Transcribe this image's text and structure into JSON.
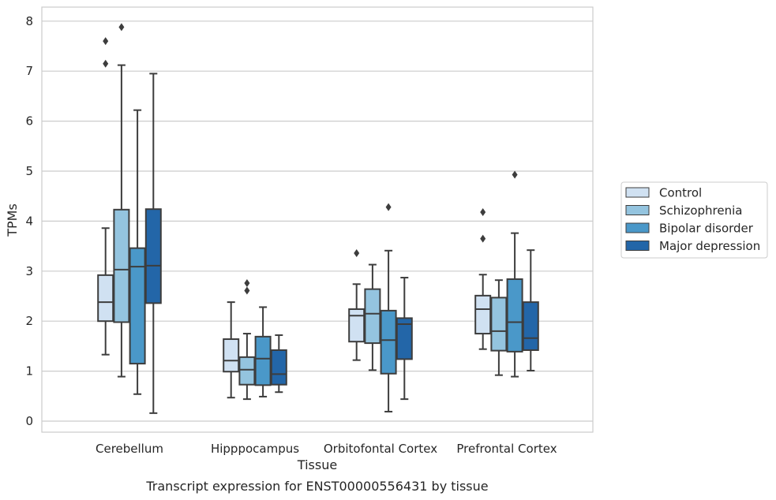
{
  "chart_data": {
    "type": "boxplot",
    "title": "",
    "caption": "Transcript expression for ENST00000556431 by tissue",
    "xlabel": "Tissue",
    "ylabel": "TPMs",
    "ylim": [
      -0.2,
      8.3
    ],
    "yticks": [
      0,
      1,
      2,
      3,
      4,
      5,
      6,
      7,
      8
    ],
    "grid": "horizontal",
    "legend_position": "right",
    "categories": [
      "Cerebellum",
      "Hipppocampus",
      "Orbitofontal Cortex",
      "Prefrontal Cortex"
    ],
    "series": [
      {
        "name": "Control",
        "color": "#d0e1f2",
        "boxes": [
          {
            "whisker_low": 1.33,
            "q1": 2.0,
            "median": 2.38,
            "q3": 2.92,
            "whisker_high": 3.86,
            "outliers": [
              7.15,
              7.6
            ]
          },
          {
            "whisker_low": 0.47,
            "q1": 0.99,
            "median": 1.21,
            "q3": 1.64,
            "whisker_high": 2.38,
            "outliers": []
          },
          {
            "whisker_low": 1.22,
            "q1": 1.59,
            "median": 2.11,
            "q3": 2.24,
            "whisker_high": 2.74,
            "outliers": [
              3.36
            ]
          },
          {
            "whisker_low": 1.44,
            "q1": 1.75,
            "median": 2.24,
            "q3": 2.51,
            "whisker_high": 2.93,
            "outliers": [
              3.65,
              4.18
            ]
          }
        ]
      },
      {
        "name": "Schizophrenia",
        "color": "#94c4df",
        "boxes": [
          {
            "whisker_low": 0.89,
            "q1": 1.98,
            "median": 3.03,
            "q3": 4.23,
            "whisker_high": 7.12,
            "outliers": [
              7.88
            ]
          },
          {
            "whisker_low": 0.44,
            "q1": 0.73,
            "median": 1.03,
            "q3": 1.28,
            "whisker_high": 1.75,
            "outliers": [
              2.61,
              2.76
            ]
          },
          {
            "whisker_low": 1.02,
            "q1": 1.56,
            "median": 2.15,
            "q3": 2.64,
            "whisker_high": 3.13,
            "outliers": []
          },
          {
            "whisker_low": 0.92,
            "q1": 1.41,
            "median": 1.8,
            "q3": 2.47,
            "whisker_high": 2.82,
            "outliers": []
          }
        ]
      },
      {
        "name": "Bipolar disorder",
        "color": "#4a98c9",
        "boxes": [
          {
            "whisker_low": 0.54,
            "q1": 1.15,
            "median": 3.09,
            "q3": 3.46,
            "whisker_high": 6.22,
            "outliers": []
          },
          {
            "whisker_low": 0.49,
            "q1": 0.72,
            "median": 1.25,
            "q3": 1.69,
            "whisker_high": 2.28,
            "outliers": []
          },
          {
            "whisker_low": 0.19,
            "q1": 0.95,
            "median": 1.62,
            "q3": 2.21,
            "whisker_high": 3.41,
            "outliers": [
              4.28
            ]
          },
          {
            "whisker_low": 0.89,
            "q1": 1.39,
            "median": 1.98,
            "q3": 2.84,
            "whisker_high": 3.76,
            "outliers": [
              4.93
            ]
          }
        ]
      },
      {
        "name": "Major depression",
        "color": "#2366a8",
        "boxes": [
          {
            "whisker_low": 0.16,
            "q1": 2.36,
            "median": 3.11,
            "q3": 4.24,
            "whisker_high": 6.95,
            "outliers": []
          },
          {
            "whisker_low": 0.58,
            "q1": 0.73,
            "median": 0.94,
            "q3": 1.42,
            "whisker_high": 1.72,
            "outliers": []
          },
          {
            "whisker_low": 0.44,
            "q1": 1.24,
            "median": 1.94,
            "q3": 2.06,
            "whisker_high": 2.87,
            "outliers": []
          },
          {
            "whisker_low": 1.01,
            "q1": 1.42,
            "median": 1.66,
            "q3": 2.38,
            "whisker_high": 3.42,
            "outliers": []
          }
        ]
      }
    ]
  }
}
